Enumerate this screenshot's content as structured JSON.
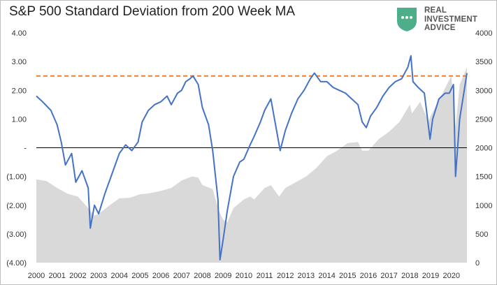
{
  "title": "S&P 500 Standard Deviation from 200 Week MA",
  "logo": {
    "icon": "shield-dots-icon",
    "color": "#4caf8a",
    "lines": [
      "REAL",
      "INVESTMENT",
      "ADVICE"
    ]
  },
  "colors": {
    "deviation_line": "#4472c4",
    "threshold_line": "#ed7d31",
    "price_area": "#d9d9d9",
    "zero_line": "#000000"
  },
  "chart_data": {
    "type": "line",
    "title": "S&P 500 Standard Deviation from 200 Week MA",
    "x_ticks": [
      "2000",
      "2001",
      "2002",
      "2003",
      "2004",
      "2005",
      "2006",
      "2007",
      "2008",
      "2009",
      "2010",
      "2011",
      "2012",
      "2013",
      "2014",
      "2015",
      "2016",
      "2017",
      "2018",
      "2019",
      "2020"
    ],
    "xlim": [
      2000,
      2020.75
    ],
    "left_axis": {
      "ylim": [
        -4,
        4
      ],
      "tick_values": [
        4,
        3,
        2,
        1,
        0,
        -1,
        -2,
        -3,
        -4
      ],
      "tick_labels": [
        "4.00",
        "3.00",
        "2.00",
        "1.00",
        "-",
        "(1.00)",
        "(2.00)",
        "(3.00)",
        "(4.00)"
      ]
    },
    "right_axis": {
      "ylim": [
        0,
        4000
      ],
      "tick_values": [
        4000,
        3500,
        3000,
        2500,
        2000,
        1500,
        1000,
        500,
        0
      ],
      "tick_labels": [
        "4000",
        "3500",
        "3000",
        "2500",
        "2000",
        "1500",
        "1000",
        "500",
        "0"
      ]
    },
    "threshold": 2.5,
    "series": [
      {
        "axis": "left",
        "type": "line",
        "x": [
          2000,
          2000.3,
          2000.7,
          2001,
          2001.2,
          2001.4,
          2001.7,
          2001.9,
          2002.2,
          2002.5,
          2002.6,
          2002.8,
          2003.0,
          2003.3,
          2003.6,
          2004.0,
          2004.3,
          2004.6,
          2004.9,
          2005.1,
          2005.4,
          2005.7,
          2006.0,
          2006.3,
          2006.5,
          2006.8,
          2007.0,
          2007.2,
          2007.4,
          2007.55,
          2007.8,
          2008.0,
          2008.3,
          2008.5,
          2008.75,
          2008.85,
          2009.0,
          2009.2,
          2009.5,
          2009.8,
          2010.0,
          2010.3,
          2010.5,
          2010.8,
          2011.0,
          2011.3,
          2011.6,
          2011.75,
          2012.0,
          2012.3,
          2012.6,
          2012.9,
          2013.2,
          2013.4,
          2013.7,
          2014.0,
          2014.3,
          2014.6,
          2014.9,
          2015.2,
          2015.5,
          2015.7,
          2015.9,
          2016.1,
          2016.4,
          2016.7,
          2017.0,
          2017.3,
          2017.6,
          2017.9,
          2018.05,
          2018.15,
          2018.4,
          2018.7,
          2018.97,
          2019.1,
          2019.4,
          2019.7,
          2019.9,
          2020.1,
          2020.2,
          2020.4,
          2020.6,
          2020.75
        ],
        "y": [
          1.8,
          1.6,
          1.3,
          0.8,
          0.2,
          -0.6,
          -0.2,
          -1.2,
          -0.8,
          -1.4,
          -2.8,
          -2.0,
          -2.3,
          -1.6,
          -1.0,
          -0.2,
          0.1,
          -0.1,
          0.2,
          0.9,
          1.3,
          1.5,
          1.6,
          1.8,
          1.5,
          1.9,
          2.0,
          2.3,
          2.4,
          2.5,
          2.2,
          1.4,
          0.8,
          -0.1,
          -1.8,
          -3.9,
          -3.2,
          -2.2,
          -1.0,
          -0.5,
          -0.4,
          0.1,
          0.4,
          0.9,
          1.3,
          1.7,
          0.5,
          -0.1,
          0.6,
          1.2,
          1.7,
          2.0,
          2.4,
          2.6,
          2.3,
          2.3,
          2.1,
          2.0,
          1.9,
          1.7,
          1.5,
          0.9,
          0.7,
          1.1,
          1.4,
          1.8,
          2.1,
          2.3,
          2.4,
          2.8,
          3.2,
          2.3,
          2.1,
          1.9,
          0.3,
          1.0,
          1.7,
          1.9,
          1.9,
          2.2,
          -1.0,
          1.0,
          1.9,
          2.6
        ]
      },
      {
        "axis": "right",
        "type": "area",
        "x": [
          2000,
          2000.5,
          2001,
          2001.5,
          2002,
          2002.5,
          2002.8,
          2003,
          2003.5,
          2004,
          2004.5,
          2005,
          2005.5,
          2006,
          2006.5,
          2007,
          2007.5,
          2007.8,
          2008,
          2008.5,
          2008.8,
          2009,
          2009.2,
          2009.5,
          2010,
          2010.3,
          2010.5,
          2011,
          2011.3,
          2011.7,
          2012,
          2012.5,
          2013,
          2013.5,
          2014,
          2014.5,
          2015,
          2015.5,
          2015.7,
          2016,
          2016.5,
          2017,
          2017.5,
          2018,
          2018.1,
          2018.5,
          2018.9,
          2019,
          2019.5,
          2020,
          2020.2,
          2020.4,
          2020.75
        ],
        "y": [
          1450,
          1420,
          1300,
          1200,
          1150,
          950,
          820,
          850,
          990,
          1120,
          1130,
          1190,
          1210,
          1250,
          1300,
          1430,
          1500,
          1480,
          1350,
          1280,
          900,
          750,
          700,
          950,
          1100,
          1150,
          1100,
          1300,
          1350,
          1150,
          1300,
          1400,
          1500,
          1650,
          1850,
          1950,
          2080,
          2100,
          1950,
          1950,
          2150,
          2280,
          2450,
          2750,
          2600,
          2800,
          2450,
          2550,
          2900,
          3250,
          2350,
          3100,
          3400
        ]
      }
    ]
  }
}
